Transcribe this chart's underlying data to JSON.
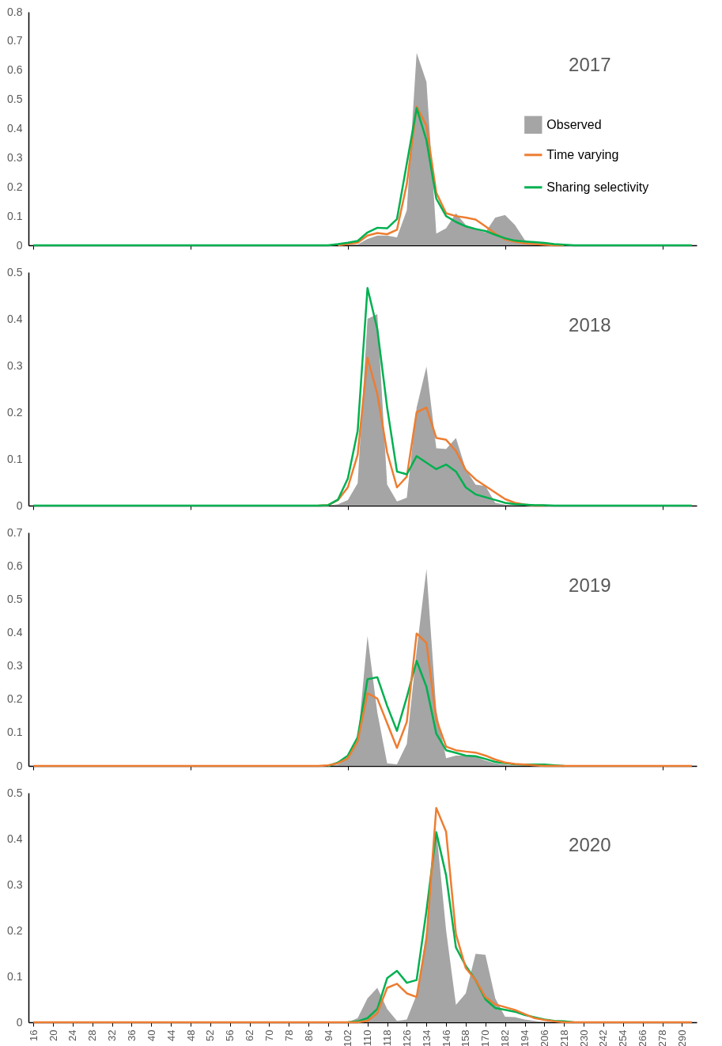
{
  "chart_data": [
    {
      "type": "line",
      "title": "2017",
      "legend": "right",
      "tick_labels": "y",
      "categories": [
        "16",
        null,
        "20",
        null,
        "24",
        null,
        "28",
        null,
        "32",
        null,
        "36",
        null,
        "40",
        null,
        "44",
        null,
        "48",
        null,
        "52",
        null,
        "56",
        null,
        "62",
        null,
        "70",
        null,
        "78",
        null,
        "86",
        null,
        "94",
        null,
        "102",
        null,
        "110",
        null,
        "118",
        null,
        "126",
        null,
        "134",
        null,
        "146",
        null,
        "158",
        null,
        "170",
        null,
        "182",
        null,
        "194",
        null,
        "206",
        null,
        "218",
        null,
        "230",
        null,
        "242",
        null,
        "254",
        null,
        "266",
        null,
        "278",
        null,
        "290",
        null
      ],
      "ylim": [
        0,
        0.8
      ],
      "yticks": [
        0,
        0.1,
        0.2,
        0.3,
        0.4,
        0.5,
        0.6,
        0.7,
        0.8
      ],
      "series": [
        {
          "name": "Observed",
          "type": "area",
          "color": "#a5a5a5",
          "values": [
            0,
            0,
            0,
            0,
            0,
            0,
            0,
            0,
            0,
            0,
            0,
            0,
            0,
            0,
            0,
            0,
            0,
            0,
            0,
            0,
            0,
            0,
            0,
            0,
            0,
            0,
            0,
            0,
            0,
            0,
            0,
            0,
            0,
            0.003,
            0.022,
            0.033,
            0.033,
            0.027,
            0.12,
            0.66,
            0.56,
            0.04,
            0.058,
            0.11,
            0.07,
            0.055,
            0.044,
            0.095,
            0.104,
            0.07,
            0.018,
            0.009,
            0.004,
            0,
            0,
            0,
            0,
            0,
            0,
            0,
            0,
            0,
            0,
            0,
            0,
            0,
            0,
            0
          ]
        },
        {
          "name": "Time varying",
          "color": "#ed7d31",
          "values": [
            null,
            null,
            null,
            null,
            null,
            null,
            null,
            null,
            null,
            null,
            null,
            null,
            null,
            null,
            null,
            null,
            null,
            null,
            null,
            null,
            null,
            null,
            null,
            null,
            null,
            null,
            null,
            null,
            null,
            null,
            null,
            0,
            0.004,
            0.009,
            0.033,
            0.042,
            0.038,
            0.053,
            0.21,
            0.475,
            0.41,
            0.18,
            0.11,
            0.1,
            0.095,
            0.088,
            0.065,
            0.04,
            0.02,
            0.012,
            0.007,
            0.004,
            0.002,
            0,
            0,
            null,
            null,
            null,
            null,
            null,
            null,
            null,
            null,
            null,
            null,
            null,
            null,
            null
          ]
        },
        {
          "name": "Sharing selectivity",
          "color": "#00b050",
          "values": [
            0,
            0,
            0,
            0,
            0,
            0,
            0,
            0,
            0,
            0,
            0,
            0,
            0,
            0,
            0,
            0,
            0,
            0,
            0,
            0,
            0,
            0,
            0,
            0,
            0,
            0,
            0,
            0,
            0,
            0,
            0,
            0.004,
            0.009,
            0.015,
            0.044,
            0.06,
            0.058,
            0.09,
            0.28,
            0.47,
            0.36,
            0.16,
            0.1,
            0.08,
            0.065,
            0.056,
            0.049,
            0.036,
            0.024,
            0.016,
            0.013,
            0.011,
            0.008,
            0.004,
            0.002,
            0,
            0,
            0,
            0,
            0,
            0,
            0,
            0,
            0,
            0,
            0,
            0,
            0
          ]
        }
      ]
    },
    {
      "type": "line",
      "title": "2018",
      "tick_labels": "y",
      "categories": [
        "16",
        null,
        "20",
        null,
        "24",
        null,
        "28",
        null,
        "32",
        null,
        "36",
        null,
        "40",
        null,
        "44",
        null,
        "48",
        null,
        "52",
        null,
        "56",
        null,
        "62",
        null,
        "70",
        null,
        "78",
        null,
        "86",
        null,
        "94",
        null,
        "102",
        null,
        "110",
        null,
        "118",
        null,
        "126",
        null,
        "134",
        null,
        "146",
        null,
        "158",
        null,
        "170",
        null,
        "182",
        null,
        "194",
        null,
        "206",
        null,
        "218",
        null,
        "230",
        null,
        "242",
        null,
        "254",
        null,
        "266",
        null,
        "278",
        null,
        "290",
        null
      ],
      "ylim": [
        0,
        0.5
      ],
      "yticks": [
        0,
        0.1,
        0.2,
        0.3,
        0.4,
        0.5
      ],
      "series": [
        {
          "type": "area",
          "color": "#a5a5a5",
          "values": [
            0,
            0,
            0,
            0,
            0,
            0,
            0,
            0,
            0,
            0,
            0,
            0,
            0,
            0,
            0,
            0,
            0,
            0,
            0,
            0,
            0,
            0,
            0,
            0,
            0,
            0,
            0,
            0,
            0,
            0,
            0,
            0.003,
            0.012,
            0.048,
            0.4,
            0.41,
            0.045,
            0.009,
            0.017,
            0.21,
            0.298,
            0.123,
            0.121,
            0.145,
            0.078,
            0.045,
            0.042,
            0.006,
            0.002,
            0,
            0,
            0,
            0,
            0,
            0,
            0,
            0,
            0,
            0,
            0,
            0,
            0,
            0,
            0,
            0,
            0,
            0,
            0
          ]
        },
        {
          "color": "#ed7d31",
          "values": [
            null,
            null,
            null,
            null,
            null,
            null,
            null,
            null,
            null,
            null,
            null,
            null,
            null,
            null,
            null,
            null,
            null,
            null,
            null,
            null,
            null,
            null,
            null,
            null,
            null,
            null,
            null,
            null,
            null,
            0,
            0.001,
            0.012,
            0.039,
            0.109,
            0.317,
            0.239,
            0.114,
            0.039,
            0.062,
            0.2,
            0.21,
            0.145,
            0.141,
            0.117,
            0.076,
            0.056,
            0.042,
            0.028,
            0.014,
            0.006,
            0.002,
            0,
            0,
            null,
            null,
            null,
            null,
            null,
            null,
            null,
            null,
            null,
            null,
            null,
            null,
            null,
            null,
            null
          ]
        },
        {
          "color": "#00b050",
          "values": [
            0,
            0,
            0,
            0,
            0,
            0,
            0,
            0,
            0,
            0,
            0,
            0,
            0,
            0,
            0,
            0,
            0,
            0,
            0,
            0,
            0,
            0,
            0,
            0,
            0,
            0,
            0,
            0,
            0,
            0,
            0.001,
            0.013,
            0.058,
            0.16,
            0.466,
            0.378,
            0.21,
            0.073,
            0.067,
            0.106,
            0.092,
            0.078,
            0.088,
            0.073,
            0.039,
            0.024,
            0.018,
            0.012,
            0.006,
            0.003,
            0.002,
            0.001,
            0.001,
            0,
            0,
            0,
            0,
            0,
            0,
            0,
            0,
            0,
            0,
            0,
            0,
            0,
            0,
            0
          ]
        }
      ]
    },
    {
      "type": "line",
      "title": "2019",
      "tick_labels": "y",
      "categories": [
        "16",
        null,
        "20",
        null,
        "24",
        null,
        "28",
        null,
        "32",
        null,
        "36",
        null,
        "40",
        null,
        "44",
        null,
        "48",
        null,
        "52",
        null,
        "56",
        null,
        "62",
        null,
        "70",
        null,
        "78",
        null,
        "86",
        null,
        "94",
        null,
        "102",
        null,
        "110",
        null,
        "118",
        null,
        "126",
        null,
        "134",
        null,
        "146",
        null,
        "158",
        null,
        "170",
        null,
        "182",
        null,
        "194",
        null,
        "206",
        null,
        "218",
        null,
        "230",
        null,
        "242",
        null,
        "254",
        null,
        "266",
        null,
        "278",
        null,
        "290",
        null
      ],
      "ylim": [
        0,
        0.7
      ],
      "yticks": [
        0,
        0.1,
        0.2,
        0.3,
        0.4,
        0.5,
        0.6,
        0.7
      ],
      "series": [
        {
          "type": "area",
          "color": "#a5a5a5",
          "values": [
            0,
            0,
            0,
            0,
            0,
            0,
            0,
            0,
            0,
            0,
            0,
            0,
            0,
            0,
            0,
            0,
            0,
            0,
            0,
            0,
            0,
            0,
            0,
            0,
            0,
            0,
            0,
            0,
            0,
            0,
            0,
            0.004,
            0.023,
            0.07,
            0.389,
            0.16,
            0.008,
            0.005,
            0.066,
            0.346,
            0.59,
            0.167,
            0.023,
            0.031,
            0.031,
            0.027,
            0.016,
            0.008,
            0.004,
            0,
            0,
            0,
            0,
            0,
            0,
            0,
            0,
            0,
            0,
            0,
            0,
            0,
            0,
            0,
            0,
            0,
            0,
            0
          ]
        },
        {
          "color": "#00b050",
          "values": [
            null,
            null,
            null,
            null,
            null,
            null,
            null,
            null,
            null,
            null,
            null,
            null,
            null,
            null,
            null,
            null,
            null,
            null,
            null,
            null,
            null,
            null,
            null,
            null,
            null,
            null,
            null,
            null,
            null,
            null,
            0,
            0.01,
            0.031,
            0.086,
            0.26,
            0.266,
            0.18,
            0.105,
            0.206,
            0.315,
            0.237,
            0.097,
            0.047,
            0.039,
            0.031,
            0.029,
            0.021,
            0.012,
            0.008,
            0.005,
            0.004,
            0.004,
            0.004,
            0.002,
            0,
            null,
            null,
            null,
            null,
            null,
            null,
            null,
            null,
            null,
            null,
            null,
            null,
            null
          ]
        },
        {
          "color": "#ed7d31",
          "values": [
            0,
            0,
            0,
            0,
            0,
            0,
            0,
            0,
            0,
            0,
            0,
            0,
            0,
            0,
            0,
            0,
            0,
            0,
            0,
            0,
            0,
            0,
            0,
            0,
            0,
            0,
            0,
            0,
            0,
            0,
            0.002,
            0.008,
            0.023,
            0.074,
            0.218,
            0.202,
            0.128,
            0.054,
            0.132,
            0.397,
            0.369,
            0.14,
            0.058,
            0.047,
            0.043,
            0.04,
            0.031,
            0.019,
            0.01,
            0.006,
            0.004,
            0.002,
            0,
            0,
            0,
            0,
            0,
            0,
            0,
            0,
            0,
            0,
            0,
            0,
            0,
            0,
            0,
            0
          ]
        }
      ]
    },
    {
      "type": "line",
      "title": "2020",
      "categories": [
        "16",
        null,
        "20",
        null,
        "24",
        null,
        "28",
        null,
        "32",
        null,
        "36",
        null,
        "40",
        null,
        "44",
        null,
        "48",
        null,
        "52",
        null,
        "56",
        null,
        "62",
        null,
        "70",
        null,
        "78",
        null,
        "86",
        null,
        "94",
        null,
        "102",
        null,
        "110",
        null,
        "118",
        null,
        "126",
        null,
        "134",
        null,
        "146",
        null,
        "158",
        null,
        "170",
        null,
        "182",
        null,
        "194",
        null,
        "206",
        null,
        "218",
        null,
        "230",
        null,
        "242",
        null,
        "254",
        null,
        "266",
        null,
        "278",
        null,
        "290",
        null
      ],
      "ylim": [
        0,
        0.5
      ],
      "yticks": [
        0,
        0.1,
        0.2,
        0.3,
        0.4,
        0.5
      ],
      "series": [
        {
          "type": "area",
          "color": "#a5a5a5",
          "values": [
            0,
            0,
            0,
            0,
            0,
            0,
            0,
            0,
            0,
            0,
            0,
            0,
            0,
            0,
            0,
            0,
            0,
            0,
            0,
            0,
            0,
            0,
            0,
            0,
            0,
            0,
            0,
            0,
            0,
            0,
            0,
            0,
            0,
            0.009,
            0.052,
            0.075,
            0.029,
            0.003,
            0.006,
            0.06,
            0.2,
            0.42,
            0.2,
            0.038,
            0.063,
            0.149,
            0.147,
            0.052,
            0.012,
            0.011,
            0.006,
            0.003,
            0,
            0,
            0,
            0,
            0,
            0,
            0,
            0,
            0,
            0,
            0,
            0,
            0,
            0,
            0,
            0
          ]
        },
        {
          "color": "#00b050",
          "values": [
            null,
            null,
            null,
            null,
            null,
            null,
            null,
            null,
            null,
            null,
            null,
            null,
            null,
            null,
            null,
            null,
            null,
            null,
            null,
            null,
            null,
            null,
            null,
            null,
            null,
            null,
            null,
            null,
            null,
            null,
            null,
            null,
            0,
            0.002,
            0.009,
            0.029,
            0.096,
            0.112,
            0.086,
            0.092,
            0.243,
            0.414,
            0.32,
            0.163,
            0.123,
            0.092,
            0.05,
            0.031,
            0.027,
            0.023,
            0.016,
            0.011,
            0.006,
            0.003,
            0.002,
            0,
            null,
            null,
            null,
            null,
            null,
            null,
            null,
            null,
            null,
            null,
            null,
            null
          ]
        },
        {
          "color": "#ed7d31",
          "values": [
            0,
            0,
            0,
            0,
            0,
            0,
            0,
            0,
            0,
            0,
            0,
            0,
            0,
            0,
            0,
            0,
            0,
            0,
            0,
            0,
            0,
            0,
            0,
            0,
            0,
            0,
            0,
            0,
            0,
            0,
            0,
            0,
            0,
            0,
            0.003,
            0.02,
            0.075,
            0.084,
            0.063,
            0.055,
            0.18,
            0.467,
            0.415,
            0.192,
            0.118,
            0.092,
            0.055,
            0.039,
            0.033,
            0.027,
            0.018,
            0.009,
            0.005,
            0.002,
            0,
            0,
            0,
            0,
            0,
            0,
            0,
            0,
            0,
            0,
            0,
            0,
            0,
            0
          ]
        }
      ]
    }
  ]
}
